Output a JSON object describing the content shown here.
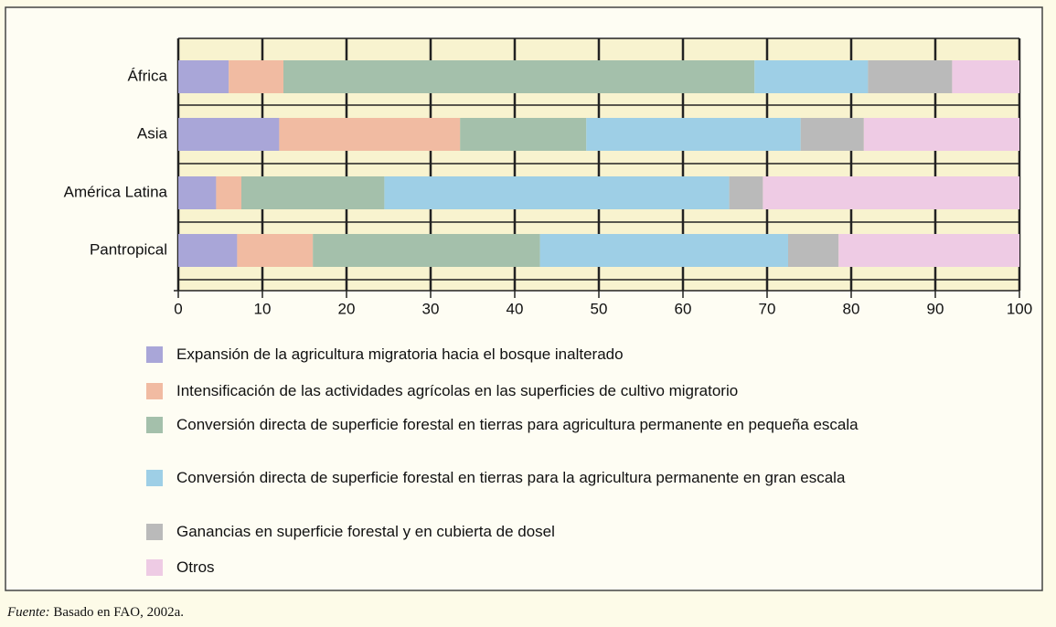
{
  "chart_data": {
    "type": "stacked-barh",
    "categories": [
      "África",
      "Asia",
      "América Latina",
      "Pantropical"
    ],
    "series": [
      {
        "name": "Expansión de la agricultura migratoria hacia el bosque inalterado",
        "color": "#a9a6d8",
        "values": [
          6,
          12,
          4.5,
          7
        ]
      },
      {
        "name": "Intensificación de las actividades agrícolas en las superficies de cultivo migratorio",
        "color": "#f1bba2",
        "values": [
          6.5,
          21.5,
          3,
          9
        ]
      },
      {
        "name": "Conversión directa de superficie forestal en tierras para agricultura permanente en pequeña escala",
        "color": "#a4c0ab",
        "values": [
          56,
          15,
          17,
          27
        ]
      },
      {
        "name": "Conversión directa de superficie forestal en tierras para la agricultura permanente en gran escala",
        "color": "#9ecfe6",
        "values": [
          13.5,
          25.5,
          41,
          29.5
        ]
      },
      {
        "name": "Ganancias en superficie forestal y en cubierta de dosel",
        "color": "#bababa",
        "values": [
          10,
          7.5,
          4,
          6
        ]
      },
      {
        "name": "Otros",
        "color": "#eecbe4",
        "values": [
          8,
          18.5,
          30.5,
          21.5
        ]
      }
    ],
    "xlim": [
      0,
      100
    ],
    "xticks": [
      0,
      10,
      20,
      30,
      40,
      50,
      60,
      70,
      80,
      90,
      100
    ],
    "grid": true,
    "source_label": "Fuente:",
    "source": "Basado en FAO, 2002a."
  }
}
